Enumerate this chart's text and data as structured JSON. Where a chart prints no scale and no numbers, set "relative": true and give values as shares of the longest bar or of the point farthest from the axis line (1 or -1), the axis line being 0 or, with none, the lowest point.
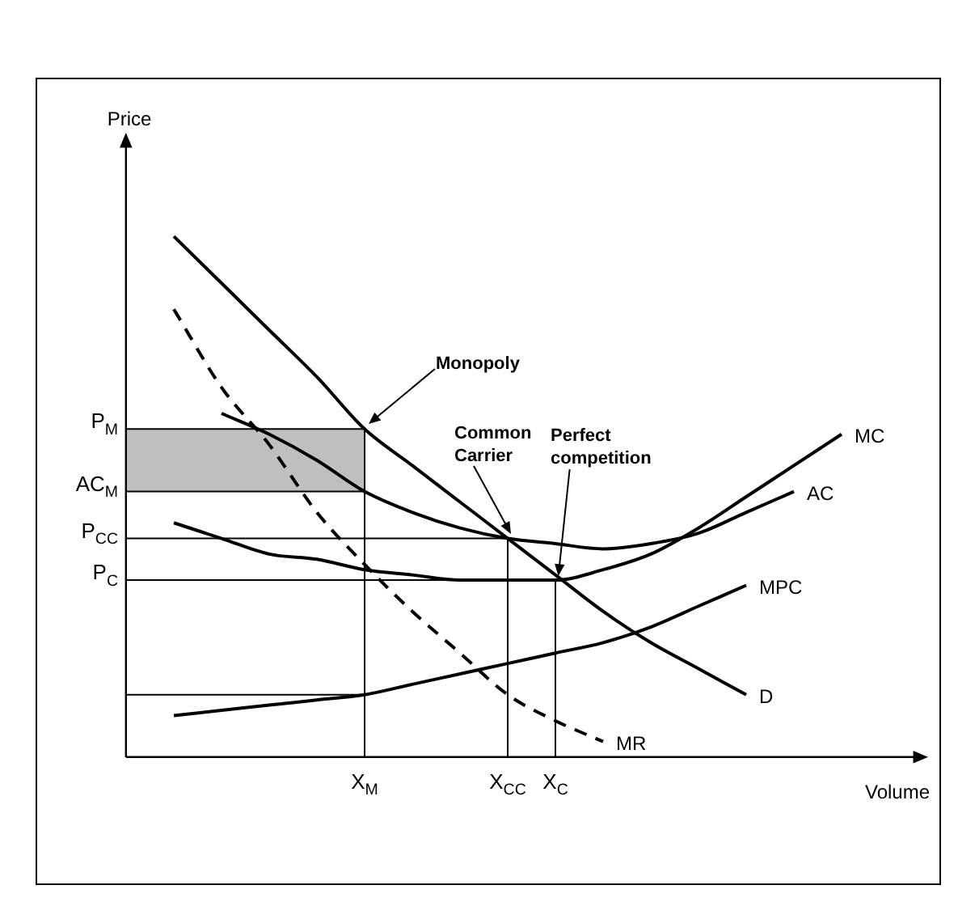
{
  "chart_data": {
    "type": "line",
    "relative": true,
    "marker": "none",
    "xlabel": "Volume",
    "categories": [
      null,
      null,
      null,
      null,
      null,
      "X$_{M}$",
      null,
      null,
      "X$_{CC}$",
      "X$_{C}$",
      null,
      null,
      null,
      null,
      null,
      null,
      null
    ],
    "series": [
      {
        "name": "D",
        "color": "#000000",
        "values": [
          null,
          1.0,
          0.91,
          0.82,
          0.73,
          0.63,
          0.56,
          0.49,
          0.42,
          0.35,
          0.28,
          0.22,
          0.17,
          0.12,
          null,
          null,
          null
        ]
      },
      {
        "name": "MR",
        "color": "#000000",
        "line_style": "dashed",
        "values": [
          null,
          0.86,
          0.71,
          0.6,
          0.47,
          0.37,
          0.28,
          0.2,
          0.12,
          0.07,
          0.03,
          null,
          null,
          null,
          null,
          null,
          null
        ]
      },
      {
        "name": "MC",
        "color": "#000000",
        "values": [
          null,
          0.45,
          0.42,
          0.39,
          0.38,
          0.36,
          0.35,
          0.34,
          0.34,
          0.34,
          0.36,
          0.39,
          0.44,
          0.5,
          0.56,
          0.62,
          null
        ]
      },
      {
        "name": "AC",
        "color": "#000000",
        "values": [
          null,
          null,
          0.66,
          0.62,
          0.57,
          0.51,
          0.47,
          0.44,
          0.42,
          0.41,
          0.4,
          0.41,
          0.43,
          0.47,
          0.51,
          null,
          null
        ]
      },
      {
        "name": "MPC",
        "color": "#000000",
        "values": [
          null,
          0.08,
          0.09,
          0.1,
          0.11,
          0.12,
          0.14,
          0.16,
          0.18,
          0.2,
          0.22,
          0.25,
          0.29,
          0.33,
          null,
          null,
          null
        ]
      },
      {
        "name": "P$_{M}$",
        "color": "#000000",
        "values": [
          0.63,
          0.63,
          0.63,
          0.63,
          0.63,
          0.63,
          null,
          null,
          null,
          null,
          null,
          null,
          null,
          null,
          null,
          null,
          null
        ],
        "lower": [
          0.51,
          0.51,
          0.51,
          0.51,
          0.51,
          0.51,
          null,
          null,
          null,
          null,
          null,
          null,
          null,
          null,
          null,
          null,
          null
        ],
        "upper": [
          0.63,
          0.63,
          0.63,
          0.63,
          0.63,
          0.63,
          null,
          null,
          null,
          null,
          null,
          null,
          null,
          null,
          null,
          null,
          null
        ]
      },
      {
        "name": "AC$_{M}$",
        "color": "#000000",
        "values": [
          0.51,
          0.51,
          0.51,
          0.51,
          0.51,
          0.51,
          null,
          null,
          null,
          null,
          null,
          null,
          null,
          null,
          null,
          null,
          null
        ]
      },
      {
        "name": "P$_{CC}$",
        "color": "#000000",
        "values": [
          0.42,
          0.42,
          0.42,
          0.42,
          0.42,
          0.42,
          0.42,
          0.42,
          0.42,
          null,
          null,
          null,
          null,
          null,
          null,
          null,
          null
        ]
      },
      {
        "name": "P$_{C}$",
        "color": "#000000",
        "values": [
          0.34,
          0.34,
          0.34,
          0.34,
          0.34,
          0.34,
          0.34,
          0.34,
          0.34,
          0.34,
          null,
          null,
          null,
          null,
          null,
          null,
          null
        ]
      },
      {
        "color": "#000000",
        "values": [
          0.12,
          0.12,
          0.12,
          0.12,
          0.12,
          0.12,
          null,
          null,
          null,
          null,
          null,
          null,
          null,
          null,
          null,
          null,
          null
        ]
      },
      {
        "color": "#000000",
        "x": [
          "X$_{M}$",
          "X$_{M}$"
        ],
        "values": [
          0,
          0.63
        ]
      },
      {
        "color": "#000000",
        "x": [
          "X$_{CC}$",
          "X$_{CC}$"
        ],
        "values": [
          0,
          0.42
        ]
      },
      {
        "color": "#000000",
        "x": [
          "X$_{C}$",
          "X$_{C}$"
        ],
        "values": [
          0,
          0.34
        ]
      }
    ],
    "annotations": [
      "Monopoly",
      "Common Carrier",
      "Perfect competition",
      "Price"
    ]
  }
}
